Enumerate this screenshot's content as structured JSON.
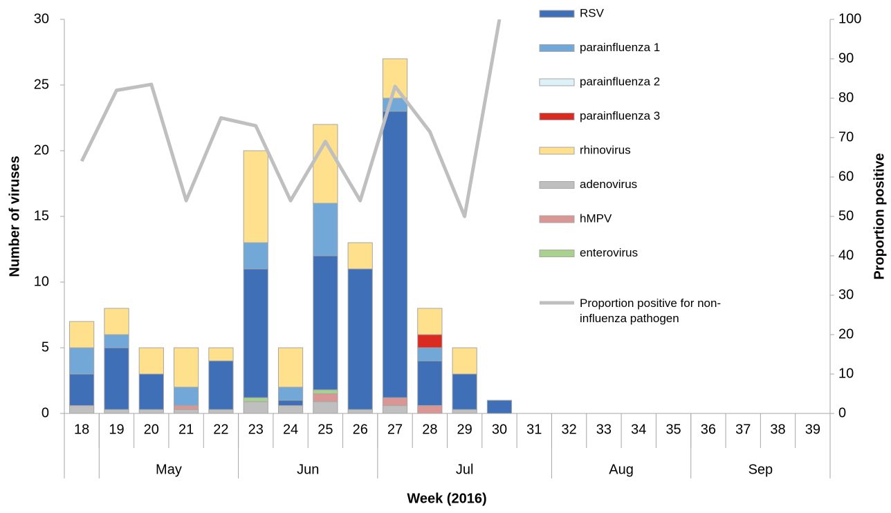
{
  "chart_data": {
    "type": "bar",
    "y_label": "Number of viruses",
    "y2_label": "Proportion positive",
    "x_label": "Week (2016)",
    "categories": [
      "18",
      "19",
      "20",
      "21",
      "22",
      "23",
      "24",
      "25",
      "26",
      "27",
      "28",
      "29",
      "30",
      "31",
      "32",
      "33",
      "34",
      "35",
      "36",
      "37",
      "38",
      "39"
    ],
    "month_groups": [
      {
        "label": null,
        "weeks": 1
      },
      {
        "label": "May",
        "weeks": 4
      },
      {
        "label": "Jun",
        "weeks": 4
      },
      {
        "label": "Jul",
        "weeks": 5
      },
      {
        "label": "Aug",
        "weeks": 4
      },
      {
        "label": "Sep",
        "weeks": 4
      }
    ],
    "ylim": [
      0,
      30
    ],
    "yticks": [
      0,
      5,
      10,
      15,
      20,
      25,
      30
    ],
    "y2lim": [
      0,
      100
    ],
    "y2ticks": [
      0,
      10,
      20,
      30,
      40,
      50,
      60,
      70,
      80,
      90,
      100
    ],
    "series": [
      {
        "name": "RSV",
        "color": "#3f6fb7",
        "values": [
          2.4,
          4.7,
          2.7,
          0,
          3.7,
          9.8,
          0.4,
          10.2,
          10.7,
          21.8,
          3.4,
          2.7,
          1,
          0,
          0,
          0,
          0,
          0,
          0,
          0,
          0,
          0
        ]
      },
      {
        "name": "parainfluenza 1",
        "color": "#71a8d8",
        "values": [
          2,
          1,
          0,
          1.4,
          0,
          2,
          1,
          4,
          0,
          1,
          1,
          0,
          0,
          0,
          0,
          0,
          0,
          0,
          0,
          0,
          0,
          0
        ]
      },
      {
        "name": "parainfluenza 2",
        "color": "#ddf1f8",
        "values": [
          0,
          0,
          0,
          0,
          0,
          0,
          0,
          0,
          0,
          0,
          0,
          0,
          0,
          0,
          0,
          0,
          0,
          0,
          0,
          0,
          0,
          0
        ]
      },
      {
        "name": "parainfluenza 3",
        "color": "#d92b20",
        "values": [
          0,
          0,
          0,
          0,
          0,
          0,
          0,
          0,
          0,
          0,
          1,
          0,
          0,
          0,
          0,
          0,
          0,
          0,
          0,
          0,
          0,
          0
        ]
      },
      {
        "name": "rhinovirus",
        "color": "#ffe08c",
        "values": [
          2,
          2,
          2,
          3,
          1,
          7,
          3,
          6,
          2,
          3,
          2,
          2,
          0,
          0,
          0,
          0,
          0,
          0,
          0,
          0,
          0,
          0
        ]
      },
      {
        "name": "adenovirus",
        "color": "#bfbfbf",
        "values": [
          0.6,
          0.3,
          0.3,
          0.3,
          0.3,
          0.9,
          0.6,
          0.9,
          0.3,
          0.6,
          0,
          0.3,
          0,
          0,
          0,
          0,
          0,
          0,
          0,
          0,
          0,
          0
        ]
      },
      {
        "name": "hMPV",
        "color": "#d99694",
        "values": [
          0,
          0,
          0,
          0.3,
          0,
          0,
          0,
          0.6,
          0,
          0.6,
          0.6,
          0,
          0,
          0,
          0,
          0,
          0,
          0,
          0,
          0,
          0,
          0
        ]
      },
      {
        "name": "enterovirus",
        "color": "#a9d18e",
        "values": [
          0,
          0,
          0,
          0,
          0,
          0.3,
          0,
          0.3,
          0,
          0,
          0,
          0,
          0,
          0,
          0,
          0,
          0,
          0,
          0,
          0,
          0,
          0
        ]
      },
      {
        "name": "Proportion positive for non-influenza pathogen",
        "type": "line",
        "axis": "y2",
        "color": "#bfbfbf",
        "values": [
          64,
          82,
          83.5,
          54,
          75,
          73,
          54,
          69,
          54,
          83,
          71.5,
          50,
          100,
          null,
          null,
          null,
          null,
          null,
          null,
          null,
          null,
          null
        ]
      }
    ]
  }
}
